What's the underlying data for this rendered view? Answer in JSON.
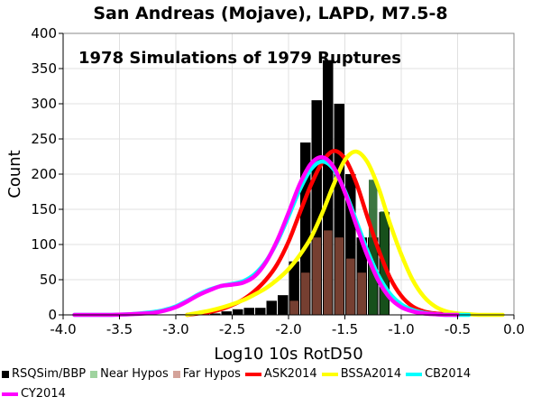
{
  "chart_data": {
    "type": "bar",
    "title": "San Andreas (Mojave), LAPD, M7.5-8",
    "annotation": "1978 Simulations of 1979 Ruptures",
    "xlabel": "Log10 10s RotD50",
    "ylabel": "Count",
    "xlim": [
      -4.0,
      0.0
    ],
    "ylim": [
      0,
      400
    ],
    "xticks": [
      "-4.0",
      "-3.5",
      "-3.0",
      "-2.5",
      "-2.0",
      "-1.5",
      "-1.0",
      "-0.5",
      "0.0"
    ],
    "yticks": [
      "0",
      "50",
      "100",
      "150",
      "200",
      "250",
      "300",
      "350",
      "400"
    ],
    "grid": true,
    "bin_width": 0.1,
    "bar_centers": [
      -3.55,
      -3.45,
      -3.35,
      -3.25,
      -3.15,
      -3.05,
      -2.95,
      -2.85,
      -2.75,
      -2.65,
      -2.55,
      -2.45,
      -2.35,
      -2.25,
      -2.15,
      -2.05,
      -1.95,
      -1.85,
      -1.75,
      -1.65,
      -1.55,
      -1.45,
      -1.35,
      -1.25,
      -1.15,
      -1.05
    ],
    "histograms": [
      {
        "name": "RSQSim/BBP",
        "color": "#000000",
        "values": [
          0,
          0,
          0,
          0,
          0,
          0,
          1,
          1,
          2,
          2,
          5,
          8,
          10,
          10,
          20,
          28,
          76,
          245,
          305,
          362,
          300,
          200,
          110,
          110,
          146,
          0
        ]
      },
      {
        "name": "Near Hypos",
        "color": "#1b5e20",
        "values": [
          0,
          0,
          0,
          0,
          0,
          0,
          0,
          0,
          0,
          0,
          0,
          0,
          0,
          0,
          0,
          0,
          0,
          0,
          0,
          0,
          0,
          0,
          0,
          192,
          147,
          0
        ]
      },
      {
        "name": "Far Hypos",
        "color": "#8b4a3a",
        "values": [
          0,
          0,
          0,
          0,
          0,
          0,
          0,
          0,
          0,
          0,
          0,
          0,
          0,
          0,
          0,
          0,
          20,
          60,
          110,
          120,
          110,
          80,
          60,
          0,
          0,
          0
        ]
      }
    ],
    "series": [
      {
        "name": "ASK2014",
        "color": "#ff0000",
        "x": [
          -2.9,
          -2.8,
          -2.7,
          -2.6,
          -2.5,
          -2.4,
          -2.3,
          -2.2,
          -2.1,
          -2.0,
          -1.9,
          -1.8,
          -1.7,
          -1.6,
          -1.5,
          -1.4,
          -1.3,
          -1.2,
          -1.1,
          -1.0,
          -0.9,
          -0.8,
          -0.7,
          -0.6,
          -0.5
        ],
        "y": [
          0,
          2,
          4,
          8,
          14,
          22,
          34,
          50,
          72,
          104,
          145,
          185,
          217,
          233,
          222,
          188,
          139,
          92,
          53,
          27,
          12,
          5,
          2,
          1,
          0
        ]
      },
      {
        "name": "BSSA2014",
        "color": "#ffff00",
        "x": [
          -2.9,
          -2.8,
          -2.7,
          -2.6,
          -2.5,
          -2.4,
          -2.3,
          -2.2,
          -2.1,
          -2.0,
          -1.9,
          -1.8,
          -1.7,
          -1.6,
          -1.5,
          -1.4,
          -1.3,
          -1.2,
          -1.1,
          -1.0,
          -0.9,
          -0.8,
          -0.7,
          -0.6,
          -0.5,
          -0.4,
          -0.3,
          -0.2,
          -0.1
        ],
        "y": [
          0,
          3,
          6,
          10,
          15,
          21,
          29,
          38,
          50,
          65,
          85,
          110,
          145,
          185,
          220,
          232,
          217,
          180,
          130,
          86,
          50,
          26,
          12,
          5,
          2,
          1,
          0,
          0,
          0
        ]
      },
      {
        "name": "CB2014",
        "color": "#00ffff",
        "x": [
          -3.9,
          -3.6,
          -3.4,
          -3.2,
          -3.1,
          -3.0,
          -2.9,
          -2.8,
          -2.7,
          -2.6,
          -2.5,
          -2.4,
          -2.3,
          -2.2,
          -2.1,
          -2.0,
          -1.9,
          -1.8,
          -1.7,
          -1.6,
          -1.5,
          -1.4,
          -1.3,
          -1.2,
          -1.1,
          -1.0,
          -0.9,
          -0.8,
          -0.7,
          -0.6,
          -0.5,
          -0.4
        ],
        "y": [
          0,
          0,
          1,
          4,
          7,
          12,
          20,
          29,
          36,
          41,
          44,
          48,
          58,
          76,
          104,
          140,
          178,
          207,
          218,
          207,
          176,
          134,
          91,
          55,
          30,
          15,
          7,
          3,
          1,
          0,
          0,
          0
        ]
      },
      {
        "name": "CY2014",
        "color": "#ff00ff",
        "x": [
          -3.9,
          -3.6,
          -3.4,
          -3.2,
          -3.1,
          -3.0,
          -2.9,
          -2.8,
          -2.7,
          -2.6,
          -2.5,
          -2.4,
          -2.3,
          -2.2,
          -2.1,
          -2.0,
          -1.9,
          -1.8,
          -1.7,
          -1.6,
          -1.5,
          -1.4,
          -1.3,
          -1.2,
          -1.1,
          -1.0,
          -0.9,
          -0.8,
          -0.7,
          -0.6,
          -0.5
        ],
        "y": [
          0,
          0,
          1,
          3,
          6,
          11,
          19,
          28,
          35,
          41,
          43,
          46,
          55,
          75,
          106,
          145,
          186,
          215,
          224,
          210,
          174,
          128,
          84,
          48,
          24,
          11,
          5,
          2,
          1,
          0,
          0
        ]
      }
    ]
  }
}
